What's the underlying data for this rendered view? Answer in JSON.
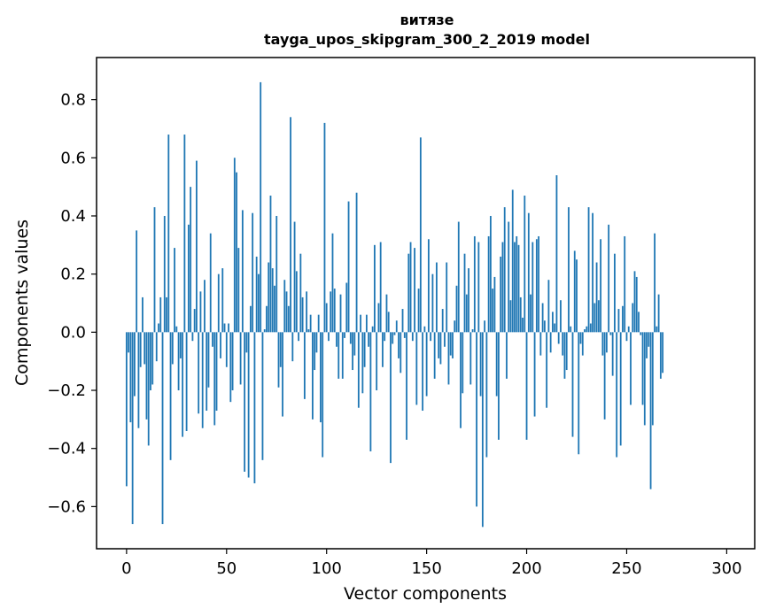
{
  "chart_data": {
    "type": "bar",
    "title": "витязе",
    "subtitle": "tayga_upos_skipgram_300_2_2019 model",
    "xlabel": "Vector components",
    "ylabel": "Components values",
    "xlim": [
      -15,
      314
    ],
    "ylim": [
      -0.745,
      0.945
    ],
    "xticks": [
      0,
      50,
      100,
      150,
      200,
      250,
      300
    ],
    "yticks": [
      -0.6,
      -0.4,
      -0.2,
      0.0,
      0.2,
      0.4,
      0.6,
      0.8
    ],
    "xtick_labels": [
      "0",
      "50",
      "100",
      "150",
      "200",
      "250",
      "300"
    ],
    "ytick_labels": [
      "−0.6",
      "−0.4",
      "−0.2",
      "0.0",
      "0.2",
      "0.4",
      "0.6",
      "0.8"
    ],
    "bar_color": "#1f77b4",
    "values": [
      -0.53,
      -0.07,
      -0.31,
      -0.66,
      -0.22,
      0.35,
      -0.33,
      -0.12,
      0.12,
      -0.11,
      -0.3,
      -0.39,
      -0.2,
      -0.18,
      0.43,
      -0.1,
      0.03,
      0.12,
      -0.66,
      0.4,
      0.12,
      0.68,
      -0.44,
      -0.11,
      0.29,
      0.02,
      -0.2,
      -0.09,
      -0.36,
      0.68,
      -0.34,
      0.37,
      0.5,
      -0.03,
      0.08,
      0.59,
      -0.28,
      0.14,
      -0.33,
      0.18,
      -0.27,
      -0.19,
      0.34,
      -0.05,
      -0.32,
      -0.27,
      0.2,
      -0.09,
      0.22,
      0.03,
      -0.12,
      0.03,
      -0.24,
      -0.2,
      0.6,
      0.55,
      0.29,
      -0.18,
      0.42,
      -0.48,
      -0.07,
      -0.5,
      0.09,
      0.41,
      -0.52,
      0.26,
      0.2,
      0.86,
      -0.44,
      0.01,
      0.09,
      0.24,
      0.47,
      0.22,
      0.16,
      0.4,
      -0.19,
      -0.12,
      -0.29,
      0.18,
      0.14,
      0.09,
      0.74,
      -0.1,
      0.38,
      0.21,
      -0.03,
      0.27,
      0.12,
      -0.23,
      0.14,
      0.01,
      0.06,
      -0.3,
      -0.13,
      -0.07,
      0.06,
      -0.31,
      -0.43,
      0.72,
      0.1,
      -0.03,
      0.14,
      0.34,
      0.15,
      -0.05,
      -0.16,
      0.13,
      -0.16,
      -0.02,
      0.17,
      0.45,
      -0.04,
      -0.13,
      -0.08,
      0.48,
      -0.26,
      0.06,
      -0.21,
      -0.12,
      0.06,
      -0.05,
      -0.41,
      0.02,
      0.3,
      -0.2,
      0.1,
      0.31,
      -0.12,
      -0.03,
      0.13,
      0.07,
      -0.45,
      -0.04,
      -0.01,
      0.04,
      -0.09,
      -0.14,
      0.08,
      -0.02,
      -0.37,
      0.27,
      0.31,
      -0.03,
      0.29,
      -0.25,
      0.15,
      0.67,
      -0.27,
      0.02,
      -0.22,
      0.32,
      -0.03,
      0.2,
      -0.16,
      0.24,
      -0.09,
      -0.11,
      0.08,
      -0.05,
      0.24,
      -0.18,
      -0.08,
      -0.09,
      0.04,
      0.16,
      0.38,
      -0.33,
      -0.21,
      0.27,
      0.13,
      0.22,
      -0.18,
      0.01,
      0.33,
      -0.6,
      0.31,
      -0.22,
      -0.67,
      0.04,
      -0.43,
      0.33,
      0.4,
      0.15,
      0.19,
      -0.22,
      -0.37,
      0.26,
      0.31,
      0.43,
      -0.16,
      0.38,
      0.11,
      0.49,
      0.31,
      0.33,
      0.3,
      0.12,
      0.05,
      0.47,
      -0.37,
      0.41,
      0.13,
      0.31,
      -0.29,
      0.32,
      0.33,
      -0.08,
      0.1,
      0.04,
      -0.26,
      0.18,
      -0.07,
      0.07,
      0.03,
      0.54,
      -0.04,
      0.11,
      -0.08,
      -0.16,
      -0.13,
      0.43,
      0.02,
      -0.36,
      0.28,
      0.25,
      -0.42,
      -0.04,
      -0.08,
      0.01,
      0.02,
      0.43,
      0.03,
      0.41,
      0.1,
      0.24,
      0.11,
      0.32,
      -0.08,
      -0.3,
      -0.07,
      0.37,
      -0.01,
      -0.15,
      0.27,
      -0.43,
      0.08,
      -0.39,
      0.09,
      0.33,
      -0.03,
      0.02,
      -0.25,
      0.1,
      0.21,
      0.19,
      0.07,
      -0.01,
      -0.25,
      -0.32,
      -0.09,
      -0.05,
      -0.54,
      -0.32,
      0.34,
      0.02,
      0.13,
      -0.16,
      -0.14
    ]
  }
}
